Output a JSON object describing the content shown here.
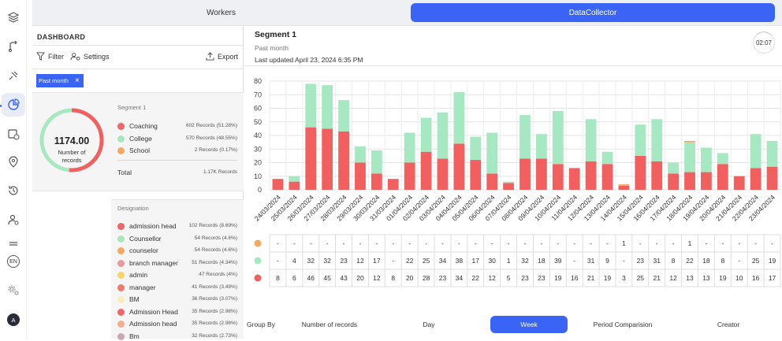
{
  "tabs": {
    "workers": "Workers",
    "datacollector": "DataCollector"
  },
  "rail": {
    "lang": "EN",
    "avatar": "A"
  },
  "sidebar": {
    "title": "DASHBOARD",
    "filter_label": "Filter",
    "settings_label": "Settings",
    "export_label": "Export",
    "chip_label": "Past month",
    "total_value": "1174.00",
    "total_label_1": "Number of",
    "total_label_2": "records",
    "segment_heading": "Segment 1",
    "segment_rows": [
      {
        "name": "Coaching",
        "value": "602 Records (51.28%)",
        "color": "#f06565"
      },
      {
        "name": "College",
        "value": "570 Records (48.55%)",
        "color": "#a8e6bf"
      },
      {
        "name": "School",
        "value": "2 Records (0.17%)",
        "color": "#f7a860"
      }
    ],
    "total_row": {
      "name": "Total",
      "value": "1.17K Records"
    },
    "designation_heading": "Designation",
    "designation_rows": [
      {
        "name": "admission head",
        "value": "102 Records (8.69%)",
        "color": "#f06565"
      },
      {
        "name": "Counsellor",
        "value": "54 Records (4.6%)",
        "color": "#a8e6bf"
      },
      {
        "name": "counselor",
        "value": "54 Records (4.6%)",
        "color": "#f7a860"
      },
      {
        "name": "branch manager",
        "value": "51 Records (4.34%)",
        "color": "#e89a9a"
      },
      {
        "name": "admin",
        "value": "47 Records (4%)",
        "color": "#f5d56a"
      },
      {
        "name": "manager",
        "value": "41 Records (3.49%)",
        "color": "#f07a6a"
      },
      {
        "name": "BM",
        "value": "36 Records (3.07%)",
        "color": "#f8eebb"
      },
      {
        "name": "Admission Head",
        "value": "35 Records (2.98%)",
        "color": "#f06565"
      },
      {
        "name": "Admission head",
        "value": "35 Records (2.98%)",
        "color": "#f4ae8e"
      },
      {
        "name": "Bm",
        "value": "32 Records (2.73%)",
        "color": "#c9a9b0"
      }
    ]
  },
  "main": {
    "segment_title": "Segment 1",
    "period": "Past month",
    "updated": "Last updated April 23, 2024 6:35 PM",
    "timer": "02:07"
  },
  "colors": {
    "coaching": "#f25f5f",
    "college": "#a6e8c1",
    "school": "#f7a860",
    "accent": "#3a64f5"
  },
  "chart_data": {
    "type": "bar",
    "stacked": true,
    "ylim": [
      0,
      80
    ],
    "yticks": [
      0,
      10,
      20,
      30,
      40,
      50,
      60,
      70,
      80
    ],
    "categories": [
      "24/03/2024",
      "25/03/2024",
      "26/03/2024",
      "27/03/2024",
      "28/03/2024",
      "29/03/2024",
      "30/03/2024",
      "31/03/2024",
      "01/04/2024",
      "02/04/2024",
      "03/04/2024",
      "04/04/2024",
      "05/04/2024",
      "06/04/2024",
      "07/04/2024",
      "08/04/2024",
      "09/04/2024",
      "10/04/2024",
      "11/04/2024",
      "12/04/2024",
      "13/04/2024",
      "14/04/2024",
      "15/04/2024",
      "16/04/2024",
      "17/04/2024",
      "18/04/2024",
      "19/04/2024",
      "20/04/2024",
      "21/04/2024",
      "22/04/2024",
      "23/04/2024"
    ],
    "series": [
      {
        "key": "coaching",
        "values": [
          8,
          6,
          46,
          45,
          43,
          20,
          12,
          8,
          20,
          28,
          23,
          34,
          22,
          12,
          5,
          23,
          23,
          19,
          16,
          21,
          19,
          3,
          25,
          21,
          12,
          13,
          13,
          19,
          10,
          16,
          17
        ]
      },
      {
        "key": "college",
        "values": [
          0,
          4,
          32,
          32,
          23,
          12,
          17,
          0,
          22,
          25,
          34,
          38,
          17,
          30,
          1,
          32,
          18,
          39,
          0,
          31,
          9,
          0,
          23,
          31,
          8,
          22,
          18,
          8,
          0,
          25,
          19
        ]
      },
      {
        "key": "school",
        "values": [
          0,
          0,
          0,
          0,
          0,
          0,
          0,
          0,
          0,
          0,
          0,
          0,
          0,
          0,
          0,
          0,
          0,
          0,
          0,
          0,
          0,
          1,
          0,
          0,
          0,
          1,
          0,
          0,
          0,
          0,
          0
        ]
      }
    ],
    "table_rows": {
      "school": [
        "-",
        "-",
        "-",
        "-",
        "-",
        "-",
        "-",
        "-",
        "-",
        "-",
        "-",
        "-",
        "-",
        "-",
        "-",
        "-",
        "-",
        "-",
        "-",
        "-",
        "-",
        "1",
        "-",
        "-",
        "-",
        "1",
        "-",
        "-",
        "-",
        "-",
        "-"
      ],
      "college": [
        "-",
        "4",
        "32",
        "32",
        "23",
        "12",
        "17",
        "-",
        "22",
        "25",
        "34",
        "38",
        "17",
        "30",
        "1",
        "32",
        "18",
        "39",
        "-",
        "31",
        "9",
        "-",
        "23",
        "31",
        "8",
        "22",
        "18",
        "8",
        "-",
        "25",
        "19"
      ],
      "coaching": [
        "8",
        "6",
        "46",
        "45",
        "43",
        "20",
        "12",
        "8",
        "20",
        "28",
        "23",
        "34",
        "22",
        "12",
        "5",
        "23",
        "23",
        "19",
        "16",
        "21",
        "19",
        "3",
        "25",
        "21",
        "12",
        "13",
        "13",
        "19",
        "10",
        "16",
        "17"
      ]
    }
  },
  "footer": {
    "group_by": "Group By",
    "options": [
      "Number of records",
      "Day",
      "Week",
      "Period Comparision",
      "Creator"
    ],
    "active": "Week"
  }
}
